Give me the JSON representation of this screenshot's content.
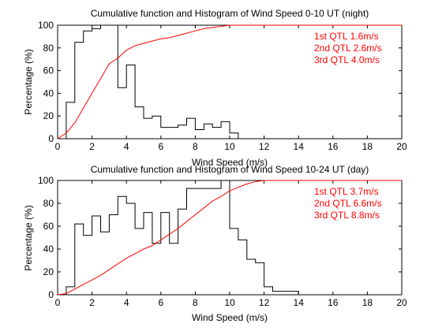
{
  "chart_data": [
    {
      "type": "line",
      "title": "Cumulative function and Histogram of Wind Speed 0-10 UT (night)",
      "xlabel": "Wind Speed (m/s)",
      "ylabel": "Percentage (%)",
      "xlim": [
        0,
        20
      ],
      "ylim": [
        0,
        100
      ],
      "xticks": [
        "0",
        "2",
        "4",
        "6",
        "8",
        "10",
        "12",
        "14",
        "16",
        "18",
        "20"
      ],
      "yticks": [
        "0",
        "20",
        "40",
        "60",
        "80",
        "100"
      ],
      "grid": false,
      "histogram": {
        "name": "Histogram",
        "color": "#000000",
        "bin_edges": [
          0,
          0.5,
          1,
          1.5,
          2,
          2.5,
          3,
          3.5,
          4,
          4.5,
          5,
          5.5,
          6,
          6.5,
          7,
          7.5,
          8,
          8.5,
          9,
          9.5,
          10,
          10.5
        ],
        "values": [
          0,
          32,
          85,
          95,
          97,
          100,
          100,
          45,
          65,
          28,
          18,
          20,
          10,
          10,
          12,
          18,
          8,
          13,
          10,
          15,
          5
        ]
      },
      "cumulative": {
        "name": "Cumulative function",
        "color": "#ff0000",
        "x": [
          0,
          0.5,
          1,
          1.5,
          2,
          2.5,
          3,
          3.5,
          4,
          4.5,
          5,
          5.5,
          6,
          6.5,
          7,
          7.5,
          8,
          8.5,
          9,
          9.5,
          10,
          10.5,
          20
        ],
        "y": [
          0,
          5,
          14,
          27,
          40,
          53,
          66,
          71,
          78,
          82,
          84,
          86,
          88,
          89,
          91,
          93,
          95,
          97,
          98,
          99,
          100,
          100,
          100
        ]
      },
      "annotations": [
        "1st QTL 1.6m/s",
        "2nd QTL 2.6m/s",
        "3rd QTL 4.0m/s"
      ]
    },
    {
      "type": "line",
      "title": "Cumulative function and Histogram of Wind Speed 10-24 UT (day)",
      "xlabel": "Wind Speed (m/s)",
      "ylabel": "Percentage (%)",
      "xlim": [
        0,
        20
      ],
      "ylim": [
        0,
        100
      ],
      "xticks": [
        "0",
        "2",
        "4",
        "6",
        "8",
        "10",
        "12",
        "14",
        "16",
        "18",
        "20"
      ],
      "yticks": [
        "0",
        "20",
        "40",
        "60",
        "80",
        "100"
      ],
      "grid": false,
      "histogram": {
        "name": "Histogram",
        "color": "#000000",
        "bin_edges": [
          0,
          0.5,
          1,
          1.5,
          2,
          2.5,
          3,
          3.5,
          4,
          4.5,
          5,
          5.5,
          6,
          6.5,
          7,
          7.5,
          8,
          8.5,
          9,
          9.5,
          10,
          10.5,
          11,
          11.5,
          12,
          12.5,
          13,
          13.5,
          14
        ],
        "values": [
          0,
          7,
          62,
          52,
          69,
          55,
          70,
          86,
          80,
          58,
          72,
          45,
          72,
          45,
          75,
          93,
          93,
          93,
          93,
          100,
          58,
          48,
          31,
          28,
          7,
          3,
          3,
          3
        ]
      },
      "cumulative": {
        "name": "Cumulative function",
        "color": "#ff0000",
        "x": [
          0,
          0.5,
          1,
          1.5,
          2,
          2.5,
          3,
          3.5,
          4,
          4.5,
          5,
          5.5,
          6,
          6.5,
          7,
          7.5,
          8,
          8.5,
          9,
          9.5,
          10,
          10.5,
          11,
          11.5,
          12,
          12.5,
          20
        ],
        "y": [
          0,
          1,
          5,
          9,
          13,
          17,
          22,
          27,
          32,
          36,
          40,
          43,
          48,
          53,
          58,
          64,
          70,
          76,
          82,
          86,
          91,
          94,
          97,
          99,
          100,
          100,
          100
        ]
      },
      "annotations": [
        "1st QTL 3.7m/s",
        "2nd QTL 6.6m/s",
        "3rd QTL 8.8m/s"
      ]
    }
  ]
}
